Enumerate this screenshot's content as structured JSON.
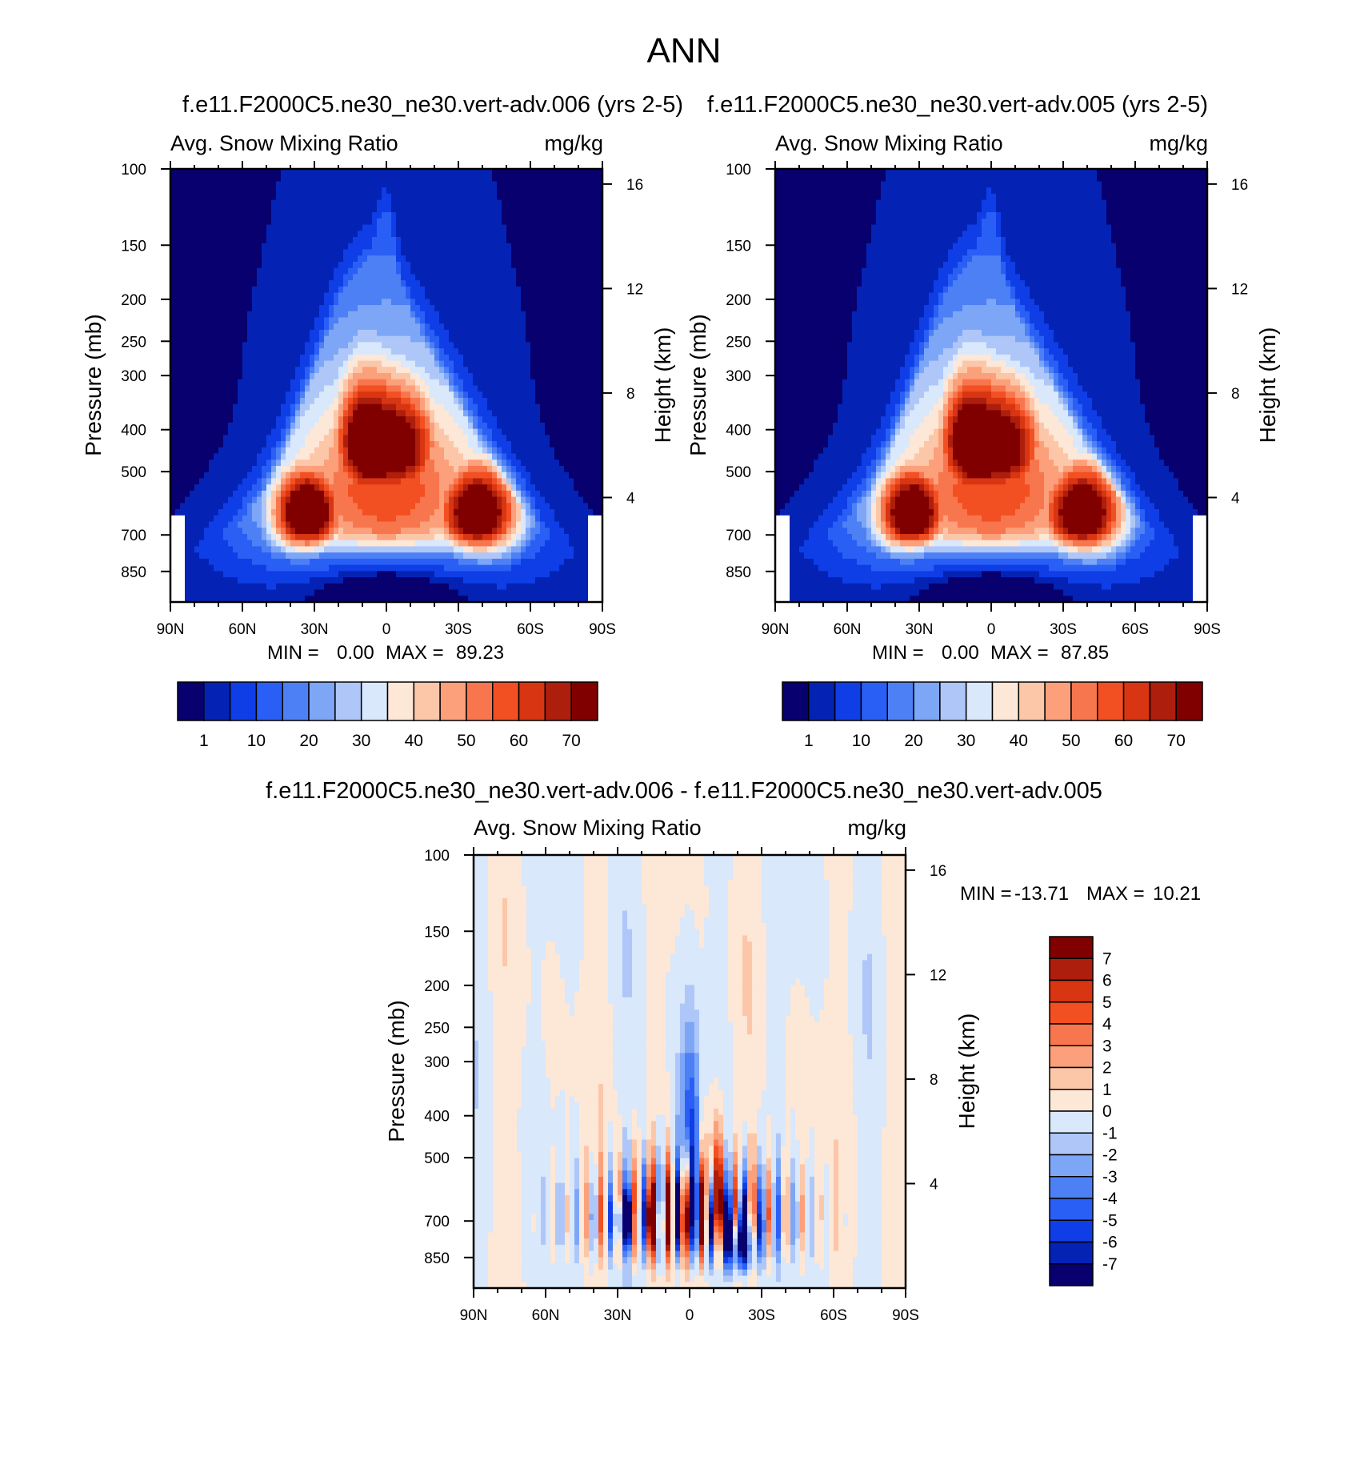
{
  "figure_title": "ANN",
  "chart_data": [
    {
      "id": "panel1",
      "type": "heatmap",
      "case_title": "f.e11.F2000C5.ne30_ne30.vert-adv.006 (yrs 2-5)",
      "left_header": "Avg. Snow Mixing Ratio",
      "right_header": "mg/kg",
      "ylabel": "Pressure (mb)",
      "ylabel_right": "Height (km)",
      "x_ticks": [
        "90N",
        "60N",
        "30N",
        "0",
        "30S",
        "60S",
        "90S"
      ],
      "x_range": [
        90,
        -90
      ],
      "pressure_ticks": [
        100,
        150,
        200,
        250,
        300,
        400,
        500,
        700,
        850
      ],
      "pressure_range": [
        100,
        1000
      ],
      "height_ticks": [
        4,
        8,
        12,
        16
      ],
      "stats": {
        "min_label": "MIN =",
        "min": "0.00",
        "max_label": "MAX =",
        "max": "89.23"
      },
      "colorbar_labels": [
        "1",
        "10",
        "20",
        "30",
        "40",
        "50",
        "60",
        "70"
      ],
      "field": {
        "peak_nh": 89,
        "peak_sh": 86,
        "peak_nh_lat": 33,
        "peak_sh_lat": -38,
        "peak_pressure": 620
      }
    },
    {
      "id": "panel2",
      "type": "heatmap",
      "case_title": "f.e11.F2000C5.ne30_ne30.vert-adv.005 (yrs 2-5)",
      "left_header": "Avg. Snow Mixing Ratio",
      "right_header": "mg/kg",
      "ylabel": "Pressure (mb)",
      "ylabel_right": "Height (km)",
      "x_ticks": [
        "90N",
        "60N",
        "30N",
        "0",
        "30S",
        "60S",
        "90S"
      ],
      "x_range": [
        90,
        -90
      ],
      "pressure_ticks": [
        100,
        150,
        200,
        250,
        300,
        400,
        500,
        700,
        850
      ],
      "pressure_range": [
        100,
        1000
      ],
      "height_ticks": [
        4,
        8,
        12,
        16
      ],
      "stats": {
        "min_label": "MIN =",
        "min": "0.00",
        "max_label": "MAX =",
        "max": "87.85"
      },
      "colorbar_labels": [
        "1",
        "10",
        "20",
        "30",
        "40",
        "50",
        "60",
        "70"
      ],
      "field": {
        "peak_nh": 87,
        "peak_sh": 86,
        "peak_nh_lat": 33,
        "peak_sh_lat": -38,
        "peak_pressure": 620
      }
    },
    {
      "id": "diff",
      "type": "heatmap",
      "case_title": "f.e11.F2000C5.ne30_ne30.vert-adv.006 - f.e11.F2000C5.ne30_ne30.vert-adv.005",
      "left_header": "Avg. Snow Mixing Ratio",
      "right_header": "mg/kg",
      "ylabel": "Pressure (mb)",
      "ylabel_right": "Height (km)",
      "x_ticks": [
        "90N",
        "60N",
        "30N",
        "0",
        "30S",
        "60S",
        "90S"
      ],
      "x_range": [
        90,
        -90
      ],
      "pressure_ticks": [
        100,
        150,
        200,
        250,
        300,
        400,
        500,
        700,
        850
      ],
      "pressure_range": [
        100,
        1000
      ],
      "height_ticks": [
        4,
        8,
        12,
        16
      ],
      "stats": {
        "min_label": "MIN =",
        "min": "-13.71",
        "max_label": "MAX =",
        "max": "10.21"
      },
      "colorbar_labels": [
        "7",
        "6",
        "5",
        "4",
        "3",
        "2",
        "1",
        "0",
        "-1",
        "-2",
        "-3",
        "-4",
        "-5",
        "-6",
        "-7"
      ],
      "field": {
        "min": -13.71,
        "max": 10.21
      }
    }
  ],
  "colors": {
    "seq_palette": [
      "#08006e",
      "#0423b4",
      "#0f3ee6",
      "#2a5ff5",
      "#4d80f5",
      "#7da6f7",
      "#aec7f8",
      "#d9e8fb",
      "#fde7d6",
      "#fcc7a8",
      "#fba07a",
      "#f8764e",
      "#f24f22",
      "#d83512",
      "#ad1e0c",
      "#800000"
    ],
    "diff_palette": [
      "#08006e",
      "#0423b4",
      "#0f3ee6",
      "#2a5ff5",
      "#4d80f5",
      "#7da6f7",
      "#aec7f8",
      "#d9e8fb",
      "#fde7d6",
      "#fcc7a8",
      "#fba07a",
      "#f8764e",
      "#f24f22",
      "#d83512",
      "#ad1e0c",
      "#800000"
    ]
  }
}
